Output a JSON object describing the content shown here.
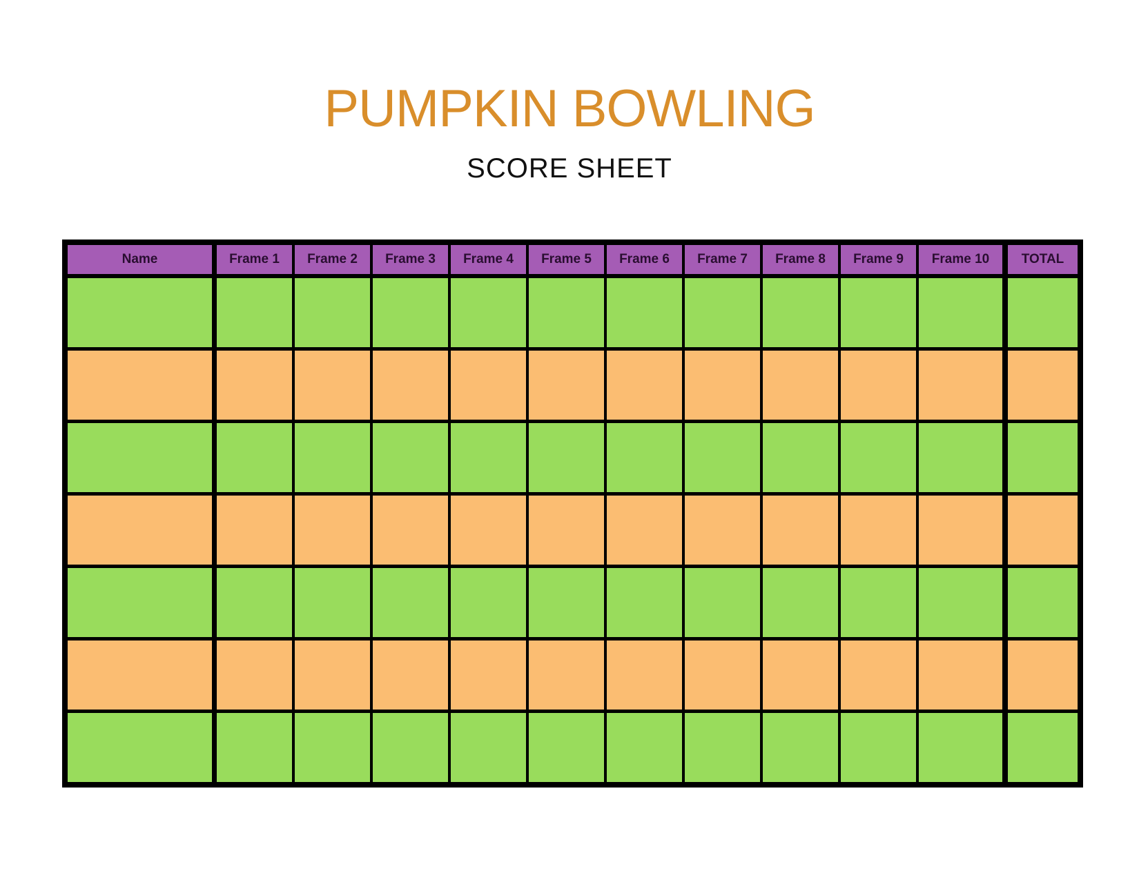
{
  "page": {
    "title": "PUMPKIN BOWLING",
    "subtitle": "SCORE SHEET"
  },
  "colors": {
    "title_orange": "#D98E2B",
    "subtitle_black": "#111111",
    "header_purple": "#A55CB5",
    "header_text": "#2A0E31",
    "row_green": "#99DC5C",
    "row_orange": "#FBBD72",
    "grid_black": "#000000",
    "page_background": "#FFFFFF"
  },
  "table": {
    "headers": [
      "Name",
      "Frame 1",
      "Frame 2",
      "Frame 3",
      "Frame 4",
      "Frame 5",
      "Frame 6",
      "Frame 7",
      "Frame 8",
      "Frame 9",
      "Frame 10",
      "TOTAL"
    ],
    "rows": [
      {
        "color": "green",
        "cells": [
          "",
          "",
          "",
          "",
          "",
          "",
          "",
          "",
          "",
          "",
          "",
          ""
        ]
      },
      {
        "color": "orange",
        "cells": [
          "",
          "",
          "",
          "",
          "",
          "",
          "",
          "",
          "",
          "",
          "",
          ""
        ]
      },
      {
        "color": "green",
        "cells": [
          "",
          "",
          "",
          "",
          "",
          "",
          "",
          "",
          "",
          "",
          "",
          ""
        ]
      },
      {
        "color": "orange",
        "cells": [
          "",
          "",
          "",
          "",
          "",
          "",
          "",
          "",
          "",
          "",
          "",
          ""
        ]
      },
      {
        "color": "green",
        "cells": [
          "",
          "",
          "",
          "",
          "",
          "",
          "",
          "",
          "",
          "",
          "",
          ""
        ]
      },
      {
        "color": "orange",
        "cells": [
          "",
          "",
          "",
          "",
          "",
          "",
          "",
          "",
          "",
          "",
          "",
          ""
        ]
      },
      {
        "color": "green",
        "cells": [
          "",
          "",
          "",
          "",
          "",
          "",
          "",
          "",
          "",
          "",
          "",
          ""
        ]
      }
    ]
  }
}
